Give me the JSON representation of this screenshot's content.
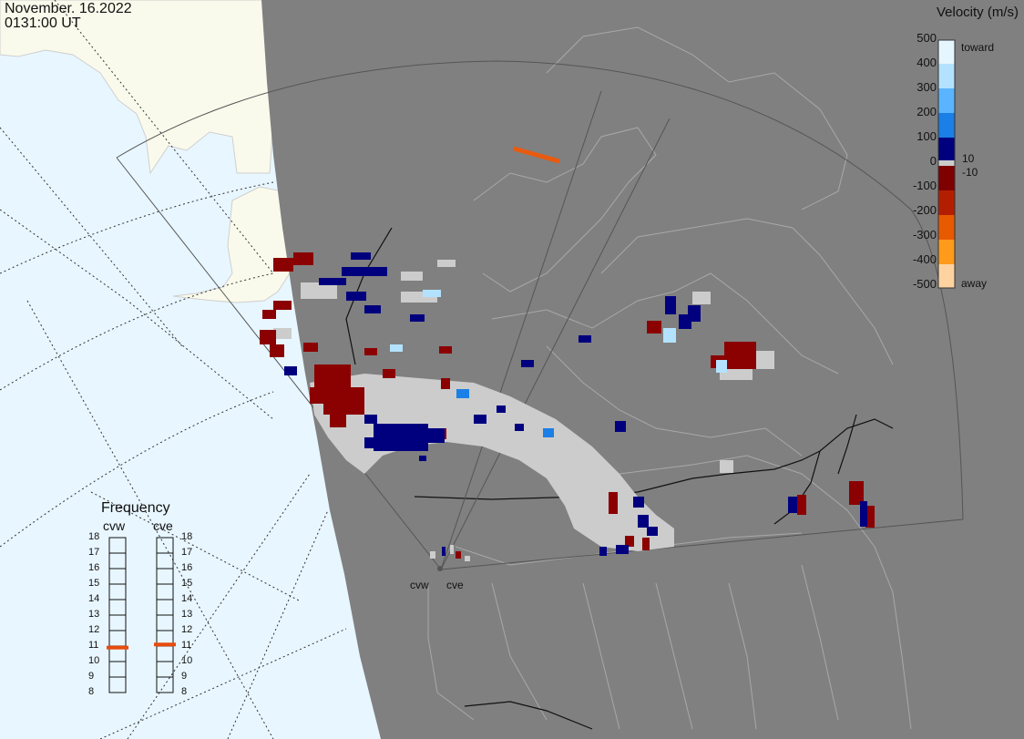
{
  "header": {
    "date": "November. 16.2022",
    "time": "0131:00 UT"
  },
  "legend": {
    "title": "Velocity (m/s)",
    "ticks": [
      "500",
      "400",
      "300",
      "200",
      "100",
      "0",
      "-100",
      "-200",
      "-300",
      "-400",
      "-500"
    ],
    "small_ticks": [
      "10",
      "-10"
    ],
    "toward_label": "toward",
    "away_label": "away",
    "colors": [
      "#e6f6ff",
      "#b3e2ff",
      "#5ab4ff",
      "#1a7fe6",
      "#0d4fc0",
      "#00007f",
      "#7f0000",
      "#b41e00",
      "#e85a00",
      "#ff9a1a",
      "#ffd3a0"
    ]
  },
  "frequency": {
    "title": "Frequency",
    "radars": [
      {
        "name": "cvw",
        "value_mhz": 10.9
      },
      {
        "name": "cve",
        "value_mhz": 11.1
      }
    ],
    "scale": [
      "18",
      "17",
      "16",
      "15",
      "14",
      "13",
      "12",
      "11",
      "10",
      "9",
      "8"
    ],
    "marker_color": "#e84c0c"
  },
  "sites": [
    {
      "name": "cvw"
    },
    {
      "name": "cve"
    }
  ],
  "colors": {
    "night": "#808080",
    "ocean": "#e8f6ff",
    "land": "#fafaec",
    "ground_scatter": "#cccccc",
    "toward_dark": "#00007f",
    "away_dark": "#8b0000"
  }
}
